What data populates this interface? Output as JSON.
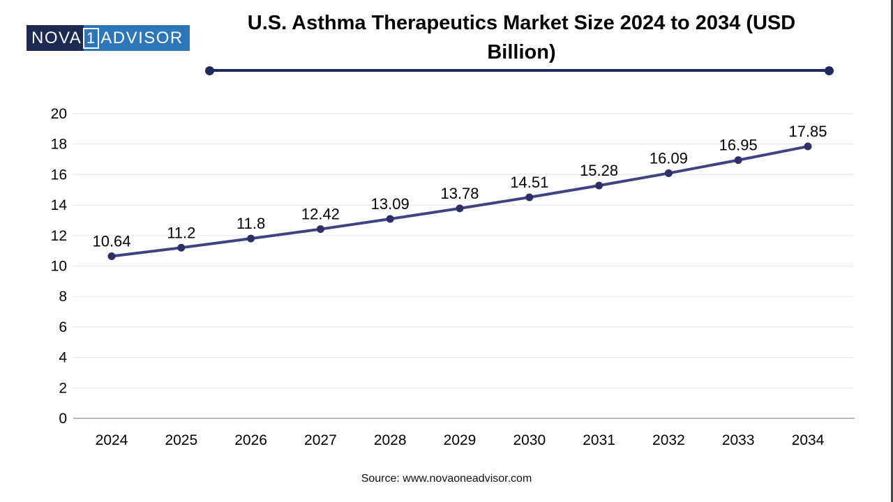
{
  "logo": {
    "text_left": "NOVA",
    "text_num": "1",
    "text_right": "ADVISOR",
    "color_dark": "#1c2a52",
    "color_blue": "#2e76ba"
  },
  "title": {
    "line1": "U.S. Asthma Therapeutics Market Size 2024 to 2034 (USD",
    "line2": "Billion)"
  },
  "source_text": "Source: www.novaoneadvisor.com",
  "colors": {
    "line": "#3f4480",
    "marker": "#2c3066",
    "gridline": "#e7e7e7",
    "axis_line": "#ababab",
    "rule": "#1e2a5a",
    "label_text": "#000000"
  },
  "chart_data": {
    "type": "line",
    "title": "U.S. Asthma Therapeutics Market Size 2024 to 2034 (USD Billion)",
    "categories": [
      "2024",
      "2025",
      "2026",
      "2027",
      "2028",
      "2029",
      "2030",
      "2031",
      "2032",
      "2033",
      "2034"
    ],
    "series": [
      {
        "name": "U.S. Asthma Therapeutics Market Size (USD Billion)",
        "values": [
          10.64,
          11.2,
          11.8,
          12.42,
          13.09,
          13.78,
          14.51,
          15.28,
          16.09,
          16.95,
          17.85
        ]
      }
    ],
    "data_labels": [
      "10.64",
      "11.2",
      "11.8",
      "12.42",
      "13.09",
      "13.78",
      "14.51",
      "15.28",
      "16.09",
      "16.95",
      "17.85"
    ],
    "xlabel": "",
    "ylabel": "",
    "ylim": [
      0,
      20
    ],
    "ytick_step": 2,
    "grid": "horizontal",
    "legend": "none",
    "source": "www.novaoneadvisor.com"
  }
}
